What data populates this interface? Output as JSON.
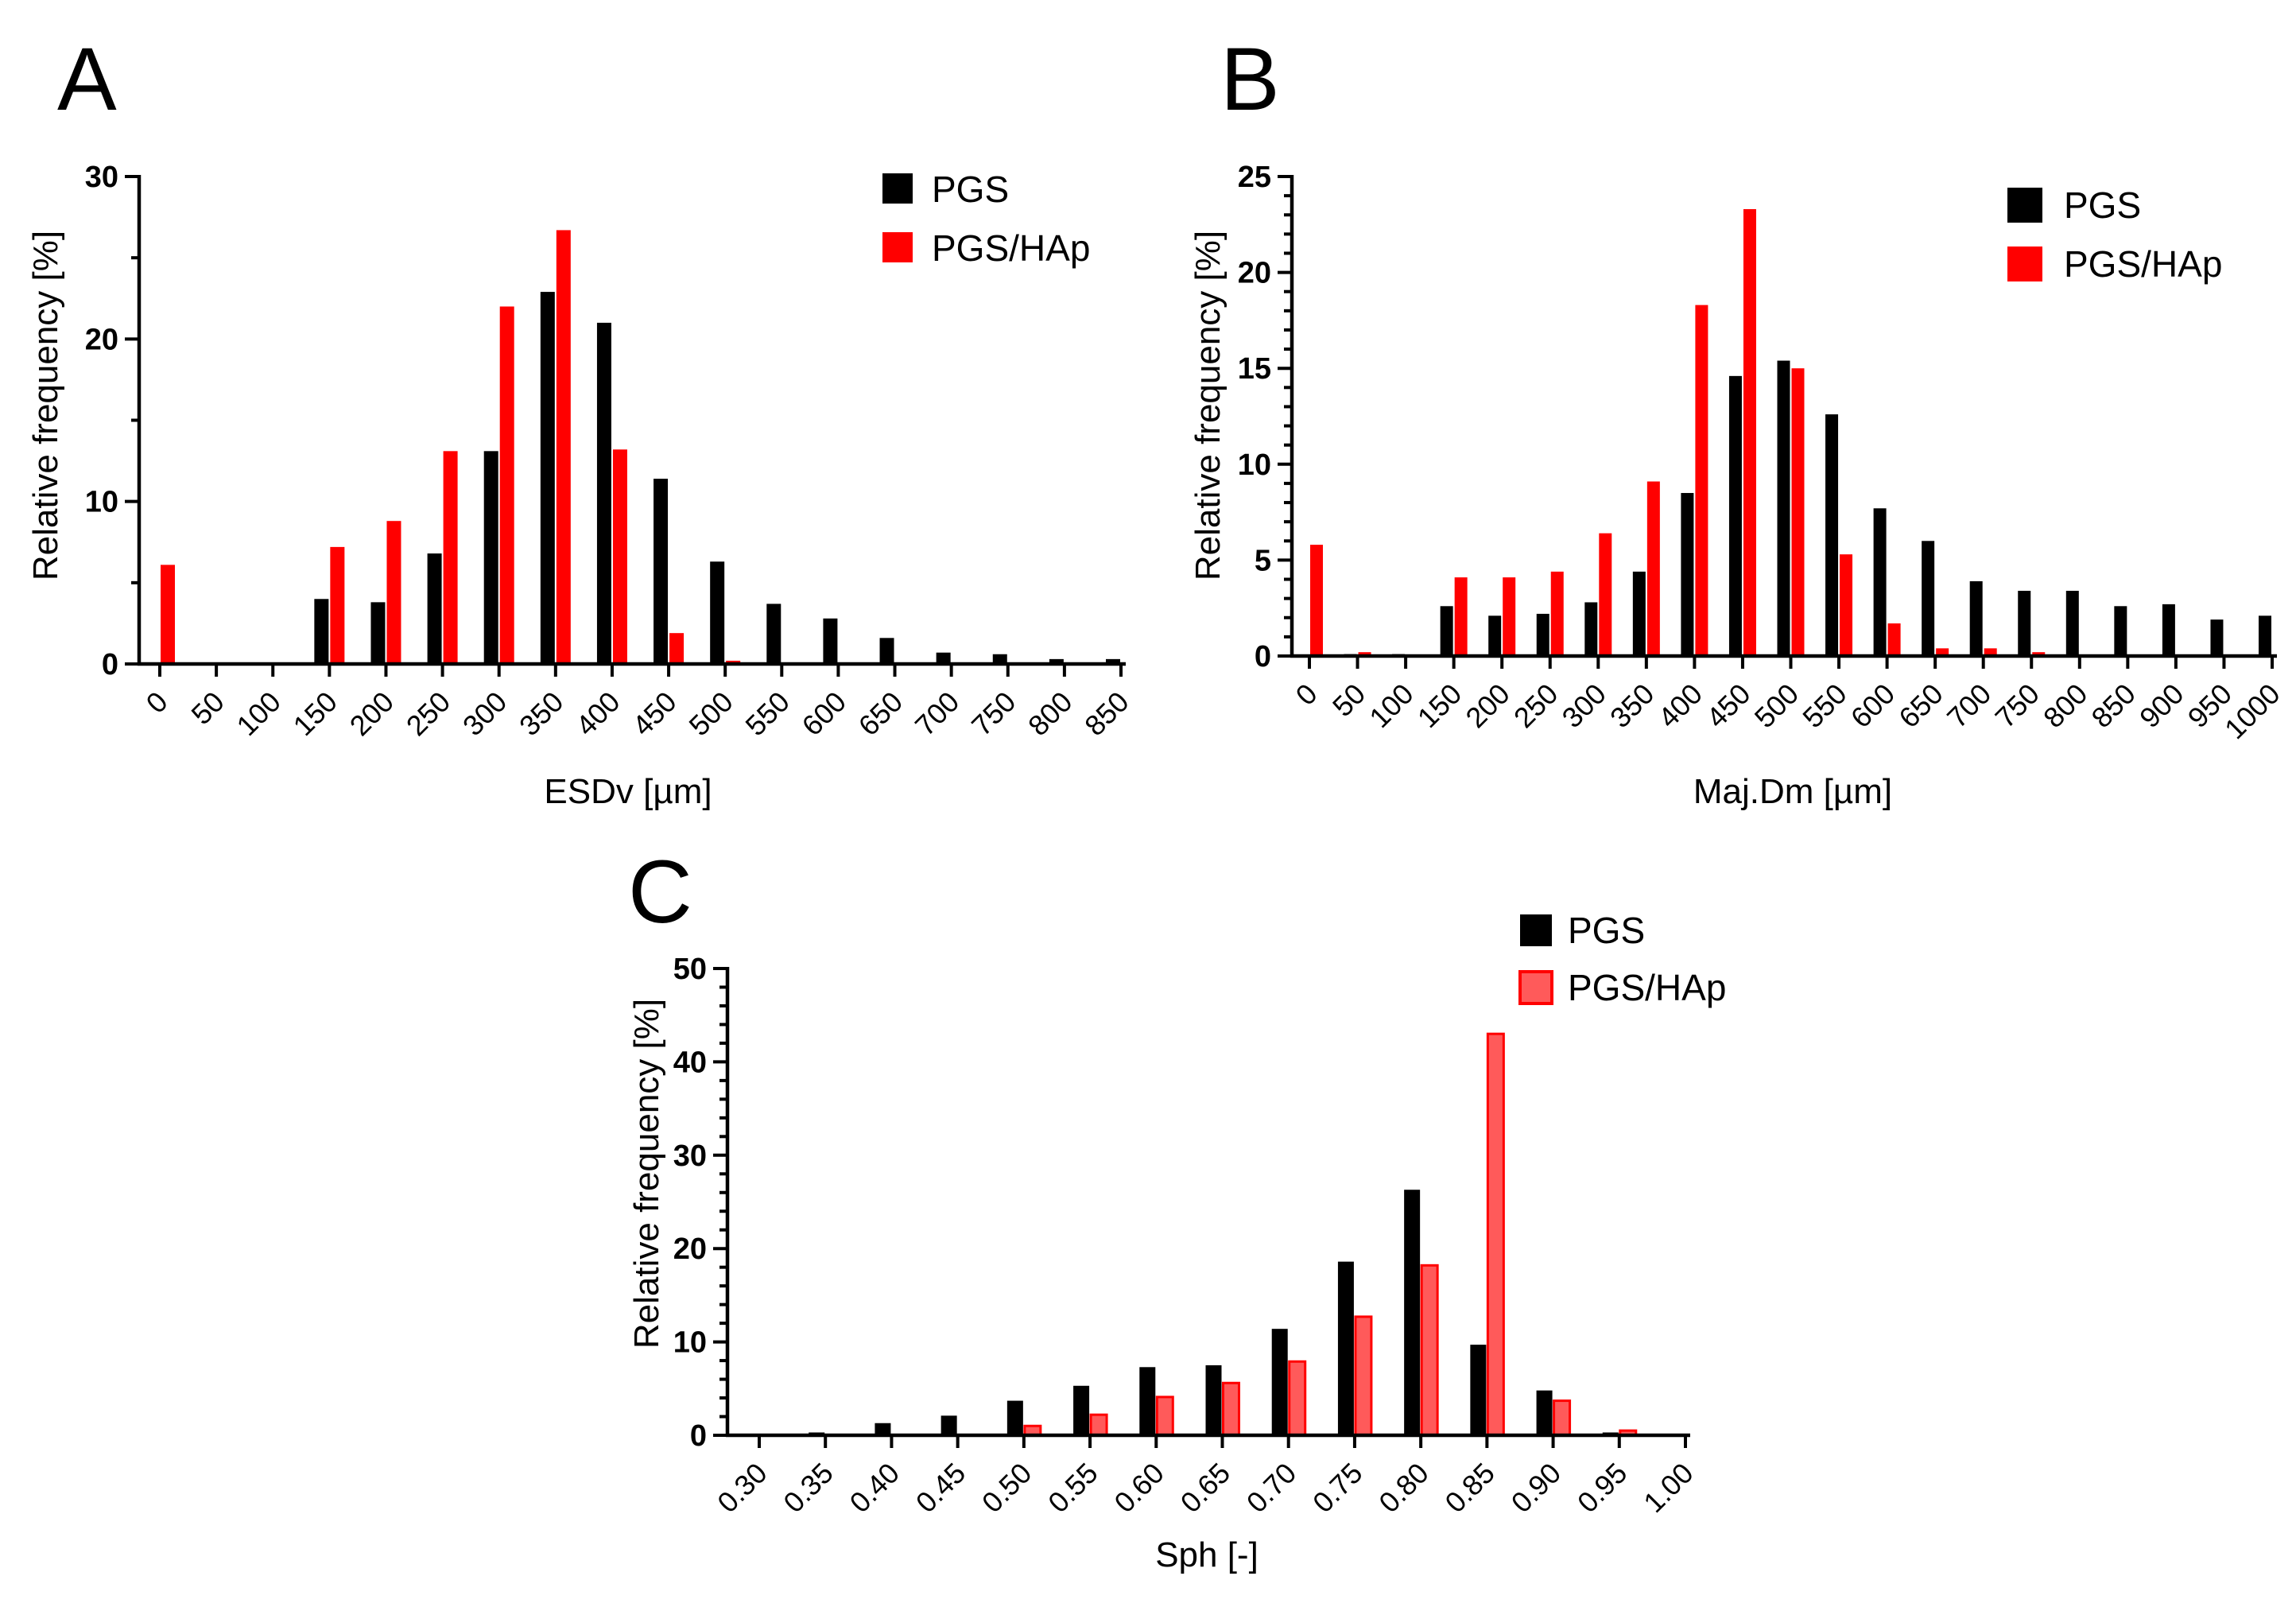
{
  "colors": {
    "PGS": "#000000",
    "PGS/HAp": "#ff0000",
    "PGS/HAp_light": "#ff5a5a"
  },
  "chart_data": [
    {
      "panel": "A",
      "type": "bar",
      "title": "",
      "xlabel": "ESDv [µm]",
      "ylabel": "Relative frequency [%]",
      "ylim": [
        0,
        30
      ],
      "yticks": [
        "0",
        "10",
        "20",
        "30"
      ],
      "categories": [
        "0",
        "50",
        "100",
        "150",
        "200",
        "250",
        "300",
        "350",
        "400",
        "450",
        "500",
        "550",
        "600",
        "650",
        "700",
        "750",
        "800",
        "850"
      ],
      "legend": [
        "PGS",
        "PGS/HAp"
      ],
      "legend_position": "top-right",
      "series": [
        {
          "name": "PGS",
          "values": [
            0,
            0,
            0,
            4.0,
            3.8,
            6.8,
            13.1,
            22.9,
            21.0,
            11.4,
            6.3,
            3.7,
            2.8,
            1.6,
            0.7,
            0.6,
            0.3,
            0.3
          ]
        },
        {
          "name": "PGS/HAp",
          "values": [
            6.1,
            0,
            0,
            7.2,
            8.8,
            13.1,
            22.0,
            26.7,
            13.2,
            1.9,
            0.2,
            0,
            0,
            0,
            0,
            0,
            0,
            0
          ]
        }
      ]
    },
    {
      "panel": "B",
      "type": "bar",
      "title": "",
      "xlabel": "Maj.Dm [µm]",
      "ylabel": "Relative frequency [%]",
      "ylim": [
        0,
        25
      ],
      "yticks": [
        "0",
        "5",
        "10",
        "15",
        "20",
        "25"
      ],
      "categories": [
        "0",
        "50",
        "100",
        "150",
        "200",
        "250",
        "300",
        "350",
        "400",
        "450",
        "500",
        "550",
        "600",
        "650",
        "700",
        "750",
        "800",
        "850",
        "900",
        "950",
        "1000"
      ],
      "legend": [
        "PGS",
        "PGS/HAp"
      ],
      "legend_position": "top-right",
      "series": [
        {
          "name": "PGS",
          "values": [
            0,
            0.1,
            0.1,
            2.6,
            2.1,
            2.2,
            2.8,
            4.4,
            8.5,
            14.6,
            15.4,
            12.6,
            7.7,
            6.0,
            3.9,
            3.4,
            3.4,
            2.6,
            2.7,
            1.9,
            2.1
          ]
        },
        {
          "name": "PGS/HAp",
          "values": [
            5.8,
            0.2,
            0,
            4.1,
            4.1,
            4.4,
            6.4,
            9.1,
            18.3,
            23.3,
            15.0,
            5.3,
            1.7,
            0.4,
            0.4,
            0.2,
            0,
            0,
            0,
            0,
            0
          ]
        }
      ]
    },
    {
      "panel": "C",
      "type": "bar",
      "title": "",
      "xlabel": "Sph [-]",
      "ylabel": "Relative frequency [%]",
      "ylim": [
        0,
        50
      ],
      "yticks": [
        "0",
        "10",
        "20",
        "30",
        "40",
        "50"
      ],
      "categories": [
        "0.30",
        "0.35",
        "0.40",
        "0.45",
        "0.50",
        "0.55",
        "0.60",
        "0.65",
        "0.70",
        "0.75",
        "0.80",
        "0.85",
        "0.90",
        "0.95",
        "1.00"
      ],
      "legend": [
        "PGS",
        "PGS/HAp"
      ],
      "legend_position": "top-right",
      "series": [
        {
          "name": "PGS",
          "values": [
            0,
            0.3,
            1.3,
            2.1,
            3.7,
            5.3,
            7.3,
            7.5,
            11.4,
            18.6,
            26.3,
            9.7,
            4.8,
            0.3,
            0
          ]
        },
        {
          "name": "PGS/HAp",
          "values": [
            0,
            0,
            0,
            0,
            1.0,
            2.2,
            4.1,
            5.6,
            7.9,
            12.7,
            18.2,
            43.0,
            3.7,
            0.5,
            0
          ]
        }
      ]
    }
  ]
}
